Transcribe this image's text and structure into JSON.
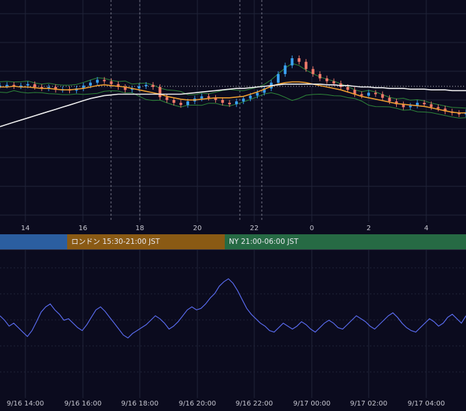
{
  "colors": {
    "background": "#0b0b1e",
    "grid": "#22253a",
    "candle_up": "#3aa0f0",
    "candle_down": "#f07a6a",
    "bollinger": "#2f8a3a",
    "ma_short": "#f0a030",
    "ma_long": "#f2f2f2",
    "oscillator": "#5a6cf0",
    "session_tokyo": "#2b5ea0",
    "session_london": "#8a5a14",
    "session_ny": "#266a44"
  },
  "sessions": [
    {
      "label": "",
      "color": "#2b5ea0"
    },
    {
      "label": "ロンドン 15:30-21:00 JST",
      "color": "#8a5a14"
    },
    {
      "label": "NY 21:00-06:00 JST",
      "color": "#266a44"
    }
  ],
  "chart_data": [
    {
      "type": "candlestick",
      "x_ticks": [
        "14",
        "16",
        "18",
        "20",
        "22",
        "0",
        "2",
        "4"
      ],
      "x_range": [
        "9/16 13:00",
        "9/17 05:10"
      ],
      "series": [
        {
          "values": [
            0.62,
            0.63,
            0.61,
            0.62,
            0.64,
            0.6,
            0.58,
            0.6,
            0.56,
            0.57,
            0.55,
            0.58,
            0.62,
            0.66,
            0.7,
            0.68,
            0.64,
            0.6,
            0.56,
            0.58,
            0.61,
            0.63,
            0.6,
            0.46,
            0.42,
            0.38,
            0.35,
            0.4,
            0.44,
            0.47,
            0.45,
            0.42,
            0.38,
            0.36,
            0.4,
            0.44,
            0.48,
            0.52,
            0.58,
            0.66,
            0.78,
            0.9,
            1.0,
            0.95,
            0.85,
            0.78,
            0.72,
            0.68,
            0.65,
            0.6,
            0.56,
            0.5,
            0.48,
            0.52,
            0.5,
            0.45,
            0.4,
            0.36,
            0.32,
            0.34,
            0.38,
            0.36,
            0.32,
            0.3,
            0.26,
            0.24,
            0.22,
            0.25
          ]
        }
      ],
      "lines": [
        {
          "values": [
            0.6,
            0.6,
            0.61,
            0.6,
            0.6,
            0.59,
            0.58,
            0.58,
            0.57,
            0.56,
            0.56,
            0.57,
            0.58,
            0.6,
            0.62,
            0.63,
            0.62,
            0.61,
            0.6,
            0.58,
            0.56,
            0.54,
            0.52,
            0.5,
            0.47,
            0.45,
            0.43,
            0.42,
            0.42,
            0.43,
            0.44,
            0.45,
            0.45,
            0.45,
            0.46,
            0.47,
            0.5,
            0.53,
            0.57,
            0.61,
            0.64,
            0.66,
            0.67,
            0.67,
            0.66,
            0.64,
            0.62,
            0.6,
            0.58,
            0.56,
            0.53,
            0.5,
            0.47,
            0.45,
            0.43,
            0.41,
            0.39,
            0.37,
            0.36,
            0.35,
            0.34,
            0.33,
            0.31,
            0.29,
            0.27,
            0.25,
            0.24,
            0.24
          ]
        },
        {
          "values": [
            0.05,
            0.08,
            0.11,
            0.14,
            0.17,
            0.2,
            0.23,
            0.26,
            0.29,
            0.32,
            0.35,
            0.38,
            0.41,
            0.44,
            0.46,
            0.48,
            0.49,
            0.5,
            0.5,
            0.5,
            0.5,
            0.5,
            0.5,
            0.5,
            0.5,
            0.5,
            0.5,
            0.51,
            0.52,
            0.53,
            0.54,
            0.55,
            0.56,
            0.57,
            0.58,
            0.58,
            0.59,
            0.6,
            0.61,
            0.62,
            0.63,
            0.64,
            0.64,
            0.64,
            0.64,
            0.64,
            0.64,
            0.63,
            0.63,
            0.62,
            0.62,
            0.61,
            0.6,
            0.6,
            0.59,
            0.59,
            0.58,
            0.58,
            0.58,
            0.57,
            0.57,
            0.57,
            0.56,
            0.56,
            0.56,
            0.55,
            0.55,
            0.55
          ]
        }
      ]
    },
    {
      "type": "line",
      "x_ticks": [
        "9/16 14:00",
        "9/16 16:00",
        "9/16 18:00",
        "9/16 20:00",
        "9/16 22:00",
        "9/17 00:00",
        "9/17 02:00",
        "9/17 04:00"
      ],
      "series": [
        {
          "values": [
            0.5,
            0.44,
            0.36,
            0.4,
            0.34,
            0.28,
            0.22,
            0.3,
            0.42,
            0.55,
            0.62,
            0.66,
            0.58,
            0.52,
            0.44,
            0.46,
            0.4,
            0.34,
            0.3,
            0.38,
            0.48,
            0.58,
            0.62,
            0.56,
            0.48,
            0.4,
            0.32,
            0.24,
            0.2,
            0.26,
            0.3,
            0.34,
            0.38,
            0.44,
            0.5,
            0.46,
            0.4,
            0.32,
            0.36,
            0.42,
            0.5,
            0.58,
            0.62,
            0.58,
            0.6,
            0.66,
            0.74,
            0.8,
            0.9,
            0.96,
            1.0,
            0.94,
            0.84,
            0.72,
            0.6,
            0.52,
            0.46,
            0.4,
            0.36,
            0.3,
            0.28,
            0.34,
            0.4,
            0.36,
            0.32,
            0.36,
            0.42,
            0.38,
            0.32,
            0.28,
            0.34,
            0.4,
            0.44,
            0.4,
            0.34,
            0.32,
            0.38,
            0.44,
            0.5,
            0.46,
            0.42,
            0.36,
            0.32,
            0.38,
            0.44,
            0.5,
            0.54,
            0.48,
            0.4,
            0.34,
            0.3,
            0.28,
            0.34,
            0.4,
            0.46,
            0.42,
            0.36,
            0.4,
            0.48,
            0.52,
            0.46,
            0.4,
            0.5
          ]
        }
      ]
    }
  ]
}
